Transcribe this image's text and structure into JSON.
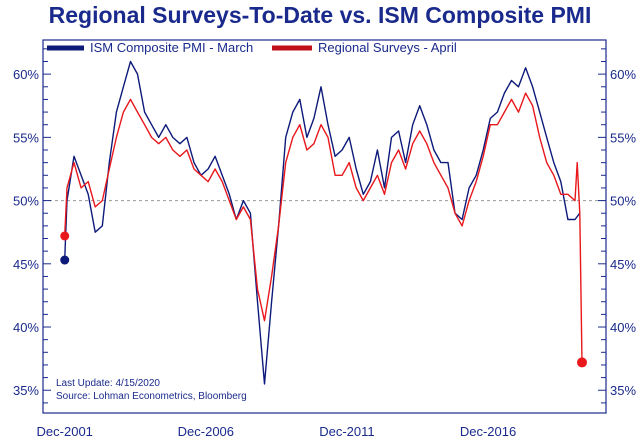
{
  "chart_data": {
    "type": "line",
    "title": "Regional Surveys-To-Date vs. ISM Composite PMI",
    "xlabel": "",
    "ylabel": "",
    "ylim": [
      33.2,
      62.7
    ],
    "yticks": [
      35,
      40,
      45,
      50,
      55,
      60
    ],
    "ytick_labels": [
      "35%",
      "40%",
      "45%",
      "50%",
      "55%",
      "60%"
    ],
    "xticks": [
      2001.92,
      2006.92,
      2011.92,
      2016.92
    ],
    "xtick_labels": [
      "Dec-2001",
      "Dec-2006",
      "Dec-2011",
      "Dec-2016"
    ],
    "xlim": [
      2001.15,
      2021.1
    ],
    "reference_line": 50,
    "legend_position": "top-left",
    "annotations": [
      "Last Update: 4/15/2020",
      "Source: Lohman Econometrics, Bloomberg"
    ],
    "series": [
      {
        "name": "ISM Composite PMI - March",
        "color": "#0d1a7a",
        "x": [
          2001.92,
          2002.0,
          2002.25,
          2002.5,
          2002.75,
          2003.0,
          2003.25,
          2003.5,
          2003.75,
          2004.0,
          2004.25,
          2004.5,
          2004.75,
          2005.0,
          2005.25,
          2005.5,
          2005.75,
          2006.0,
          2006.25,
          2006.5,
          2006.75,
          2007.0,
          2007.25,
          2007.5,
          2007.75,
          2008.0,
          2008.25,
          2008.5,
          2008.75,
          2009.0,
          2009.25,
          2009.5,
          2009.75,
          2010.0,
          2010.25,
          2010.5,
          2010.75,
          2011.0,
          2011.25,
          2011.5,
          2011.75,
          2012.0,
          2012.25,
          2012.5,
          2012.75,
          2013.0,
          2013.25,
          2013.5,
          2013.75,
          2014.0,
          2014.25,
          2014.5,
          2014.75,
          2015.0,
          2015.25,
          2015.5,
          2015.75,
          2016.0,
          2016.25,
          2016.5,
          2016.75,
          2017.0,
          2017.25,
          2017.5,
          2017.75,
          2018.0,
          2018.25,
          2018.5,
          2018.75,
          2019.0,
          2019.25,
          2019.5,
          2019.75,
          2020.0,
          2020.17
        ],
        "y": [
          45.3,
          50,
          53.5,
          52,
          50.5,
          47.5,
          48,
          53,
          57,
          59,
          61,
          60,
          57,
          56,
          55,
          56,
          55,
          54.5,
          55,
          53,
          52,
          52.5,
          53.5,
          52,
          50.5,
          48.5,
          50,
          49,
          42,
          35.5,
          42,
          48,
          55,
          57,
          58,
          55,
          56.5,
          59,
          56,
          53.5,
          54,
          55,
          52.5,
          50.5,
          51.5,
          54,
          51,
          55,
          55.5,
          53,
          56,
          57.5,
          56,
          54,
          53,
          53,
          49,
          48.5,
          51,
          52,
          54,
          56.5,
          57,
          58.5,
          59.5,
          59,
          60.5,
          59,
          57,
          55,
          53,
          51.5,
          48.5,
          48.5,
          49
        ]
      },
      {
        "name": "Regional Surveys - April",
        "color": "#e8181c",
        "x": [
          2001.92,
          2002.0,
          2002.25,
          2002.5,
          2002.75,
          2003.0,
          2003.25,
          2003.5,
          2003.75,
          2004.0,
          2004.25,
          2004.5,
          2004.75,
          2005.0,
          2005.25,
          2005.5,
          2005.75,
          2006.0,
          2006.25,
          2006.5,
          2006.75,
          2007.0,
          2007.25,
          2007.5,
          2007.75,
          2008.0,
          2008.25,
          2008.5,
          2008.75,
          2009.0,
          2009.25,
          2009.5,
          2009.75,
          2010.0,
          2010.25,
          2010.5,
          2010.75,
          2011.0,
          2011.25,
          2011.5,
          2011.75,
          2012.0,
          2012.25,
          2012.5,
          2012.75,
          2013.0,
          2013.25,
          2013.5,
          2013.75,
          2014.0,
          2014.25,
          2014.5,
          2014.75,
          2015.0,
          2015.25,
          2015.5,
          2015.75,
          2016.0,
          2016.25,
          2016.5,
          2016.75,
          2017.0,
          2017.25,
          2017.5,
          2017.75,
          2018.0,
          2018.25,
          2018.5,
          2018.75,
          2019.0,
          2019.25,
          2019.5,
          2019.75,
          2020.0,
          2020.08,
          2020.17,
          2020.25
        ],
        "y": [
          47.2,
          51,
          53,
          51,
          51.5,
          49.5,
          50,
          52.5,
          55,
          57,
          58,
          57,
          56,
          55,
          54.5,
          55,
          54,
          53.5,
          54,
          52.5,
          52,
          51.5,
          52.5,
          51.5,
          50,
          48.5,
          49.5,
          48.5,
          43,
          40.5,
          44,
          48,
          53,
          55,
          56,
          54,
          54.5,
          56,
          55,
          52,
          52,
          53,
          51,
          50,
          51,
          52,
          50.5,
          53,
          54,
          52.5,
          54.5,
          55.5,
          54.5,
          53,
          52,
          51,
          49,
          48,
          50,
          51.5,
          53.5,
          56,
          56,
          57,
          58,
          57,
          58.5,
          57.5,
          55,
          53,
          52,
          50.5,
          50.5,
          50,
          53,
          49,
          37.2
        ]
      }
    ]
  }
}
